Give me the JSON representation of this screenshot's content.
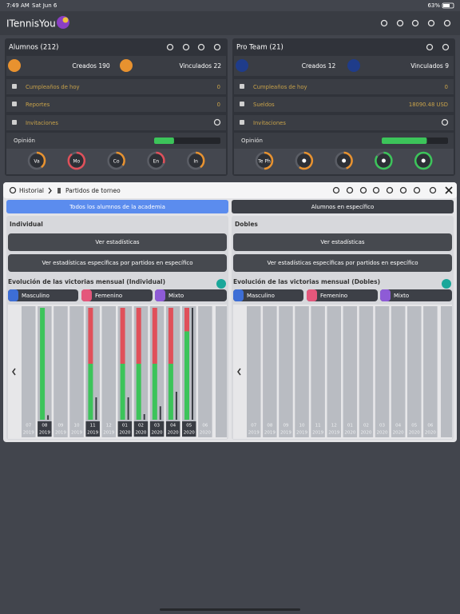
{
  "status_bar": {
    "time": "7:49 AM",
    "date": "Sat Jun 6",
    "battery": "63%"
  },
  "nav": {
    "title": "ITennisYou"
  },
  "panels": [
    {
      "title": "Alumnos (212)",
      "created": "Creados 190",
      "linked": "Vinculados 22",
      "rows": [
        {
          "label": "Cumpleaños de hoy",
          "value": 0
        },
        {
          "label": "Reportes",
          "value": 0
        },
        {
          "label": "Invitaciones"
        }
      ],
      "opinion": "Opinión",
      "opinion_progress": 30,
      "circles": [
        {
          "label": "Va",
          "value": 40,
          "color": "#e8922f"
        },
        {
          "label": "Mo",
          "value": 90,
          "color": "#e0505a"
        },
        {
          "label": "Co",
          "value": 35,
          "color": "#e8922f"
        },
        {
          "label": "En",
          "value": 30,
          "color": "#e0505a"
        },
        {
          "label": "In",
          "value": 40,
          "color": "#e8922f"
        }
      ]
    },
    {
      "title": "Pro Team (21)",
      "created": "Creados 12",
      "linked": "Vinculados 9",
      "rows": [
        {
          "label": "Cumpleaños de hoy",
          "value": 0
        },
        {
          "label": "Sueldos",
          "value": "18090.48 USD"
        },
        {
          "label": "Invitaciones"
        }
      ],
      "opinion": "Opinión",
      "opinion_progress": 68,
      "circles": [
        {
          "label": "Te Ph",
          "value": 50,
          "color": "#e8922f"
        },
        {
          "value": 60,
          "color": "#e8922f"
        },
        {
          "value": 45,
          "color": "#e8922f"
        },
        {
          "value": 85,
          "color": "#3cc45a"
        },
        {
          "value": 100,
          "color": "#3cc45a"
        }
      ]
    }
  ],
  "modal": {
    "breadcrumb": [
      "Historial",
      "Partidos de torneo"
    ],
    "tabs": [
      "Todos los alumnos de la academia",
      "Alumnos en específico"
    ],
    "columns": [
      {
        "title": "Individual",
        "buttons": [
          "Ver estadísticas",
          "Ver estadísticas específicas por partidos en específico"
        ],
        "chart": {
          "type": "bar",
          "title": "Evolución de las victorias mensual (Individual)",
          "legend": [
            "Masculino",
            "Femenino",
            "Mixto"
          ],
          "categories": [
            {
              "month": "07",
              "year": "2019"
            },
            {
              "month": "08",
              "year": "2019"
            },
            {
              "month": "09",
              "year": "2019"
            },
            {
              "month": "10",
              "year": "2019"
            },
            {
              "month": "11",
              "year": "2019"
            },
            {
              "month": "12",
              "year": "2019"
            },
            {
              "month": "01",
              "year": "2020"
            },
            {
              "month": "02",
              "year": "2020"
            },
            {
              "month": "03",
              "year": "2020"
            },
            {
              "month": "04",
              "year": "2020"
            },
            {
              "month": "05",
              "year": "2020"
            },
            {
              "month": "06",
              "year": "2020"
            }
          ],
          "series": [
            {
              "color": "#3cc45a",
              "values": [
                null,
                100,
                null,
                null,
                50,
                null,
                50,
                50,
                50,
                50,
                79,
                null
              ]
            },
            {
              "color": "#e0505a",
              "values": [
                null,
                0,
                null,
                null,
                50,
                null,
                50,
                50,
                50,
                50,
                21,
                null
              ]
            },
            {
              "color": "#3a3d44",
              "values": [
                null,
                4,
                null,
                null,
                20,
                null,
                20,
                5,
                12,
                25,
                100,
                null
              ]
            }
          ]
        }
      },
      {
        "title": "Dobles",
        "buttons": [
          "Ver estadísticas",
          "Ver estadísticas específicas por partidos en específico"
        ],
        "chart": {
          "type": "bar",
          "title": "Evolución de las victorias mensual (Dobles)",
          "legend": [
            "Masculino",
            "Femenino",
            "Mixto"
          ],
          "categories": [
            {
              "month": "07",
              "year": "2019"
            },
            {
              "month": "08",
              "year": "2019"
            },
            {
              "month": "09",
              "year": "2019"
            },
            {
              "month": "10",
              "year": "2019"
            },
            {
              "month": "11",
              "year": "2019"
            },
            {
              "month": "12",
              "year": "2019"
            },
            {
              "month": "01",
              "year": "2020"
            },
            {
              "month": "02",
              "year": "2020"
            },
            {
              "month": "03",
              "year": "2020"
            },
            {
              "month": "04",
              "year": "2020"
            },
            {
              "month": "05",
              "year": "2020"
            },
            {
              "month": "06",
              "year": "2020"
            }
          ],
          "series": [
            {
              "color": "#3cc45a",
              "values": [
                null,
                null,
                null,
                null,
                null,
                null,
                null,
                null,
                null,
                null,
                null,
                null
              ]
            },
            {
              "color": "#e0505a",
              "values": [
                null,
                null,
                null,
                null,
                null,
                null,
                null,
                null,
                null,
                null,
                null,
                null
              ]
            },
            {
              "color": "#3a3d44",
              "values": [
                null,
                null,
                null,
                null,
                null,
                null,
                null,
                null,
                null,
                null,
                null,
                null
              ]
            }
          ]
        }
      }
    ]
  }
}
